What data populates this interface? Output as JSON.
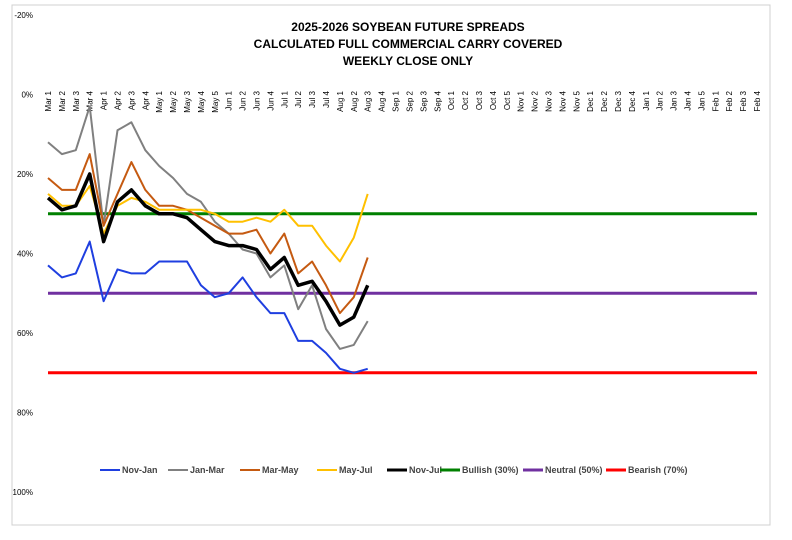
{
  "chart_data": {
    "type": "line",
    "title": [
      "2025-2026 SOYBEAN FUTURE SPREADS",
      "CALCULATED FULL COMMERCIAL CARRY COVERED",
      "WEEKLY CLOSE ONLY"
    ],
    "categories": [
      "Mar 1",
      "Mar 2",
      "Mar 3",
      "Mar 4",
      "Apr 1",
      "Apr 2",
      "Apr 3",
      "Apr 4",
      "May 1",
      "May 2",
      "May 3",
      "May 4",
      "May 5",
      "Jun 1",
      "Jun 2",
      "Jun 3",
      "Jun 4",
      "Jul 1",
      "Jul 2",
      "Jul 3",
      "Jul 4",
      "Aug 1",
      "Aug 2",
      "Aug 3",
      "Aug 4",
      "Sep 1",
      "Sep 2",
      "Sep 3",
      "Sep 4",
      "Oct 1",
      "Oct 2",
      "Oct 3",
      "Oct 4",
      "Oct 5",
      "Nov 1",
      "Nov 2",
      "Nov 3",
      "Nov 4",
      "Nov 5",
      "Dec 1",
      "Dec 2",
      "Dec 3",
      "Dec 4",
      "Jan 1",
      "Jan 2",
      "Jan 3",
      "Jan 4",
      "Jan 5",
      "Feb 1",
      "Feb 2",
      "Feb 3",
      "Feb 4"
    ],
    "ylim": [
      -20,
      100
    ],
    "y_inverted": true,
    "yticks": [
      {
        "value": -20,
        "label": "-20%"
      },
      {
        "value": 0,
        "label": "0%"
      },
      {
        "value": 20,
        "label": "20%"
      },
      {
        "value": 40,
        "label": "40%"
      },
      {
        "value": 60,
        "label": "60%"
      },
      {
        "value": 80,
        "label": "80%"
      },
      {
        "value": 100,
        "label": "100%"
      }
    ],
    "grid": false,
    "legend": "bottom",
    "series": [
      {
        "name": "Nov-Jan",
        "color": "#1f3fe0",
        "width": 2,
        "values": [
          43,
          46,
          45,
          37,
          52,
          44,
          45,
          45,
          42,
          42,
          42,
          48,
          51,
          50,
          46,
          51,
          55,
          55,
          62,
          62,
          65,
          69,
          70,
          69,
          null,
          null,
          null,
          null,
          null,
          null,
          null,
          null,
          null,
          null,
          null,
          null,
          null,
          null,
          null,
          null,
          null,
          null,
          null,
          null,
          null,
          null,
          null,
          null,
          null,
          null,
          null,
          null
        ]
      },
      {
        "name": "Jan-Mar",
        "color": "#808080",
        "width": 2,
        "values": [
          12,
          15,
          14,
          3,
          33,
          9,
          7,
          14,
          18,
          21,
          25,
          27,
          32,
          35,
          39,
          40,
          46,
          43,
          54,
          48,
          59,
          64,
          63,
          57,
          null,
          null,
          null,
          null,
          null,
          null,
          null,
          null,
          null,
          null,
          null,
          null,
          null,
          null,
          null,
          null,
          null,
          null,
          null,
          null,
          null,
          null,
          null,
          null,
          null,
          null,
          null,
          null
        ]
      },
      {
        "name": "Mar-May",
        "color": "#c55a11",
        "width": 2,
        "values": [
          21,
          24,
          24,
          15,
          33,
          25,
          17,
          24,
          28,
          28,
          29,
          31,
          33,
          35,
          35,
          34,
          40,
          35,
          45,
          42,
          48,
          55,
          51,
          41,
          null,
          null,
          null,
          null,
          null,
          null,
          null,
          null,
          null,
          null,
          null,
          null,
          null,
          null,
          null,
          null,
          null,
          null,
          null,
          null,
          null,
          null,
          null,
          null,
          null,
          null,
          null,
          null
        ]
      },
      {
        "name": "May-Jul",
        "color": "#ffc000",
        "width": 2,
        "values": [
          25,
          28,
          28,
          23,
          35,
          28,
          26,
          27,
          29,
          29,
          29,
          29,
          30,
          32,
          32,
          31,
          32,
          29,
          33,
          33,
          38,
          42,
          36,
          25,
          null,
          null,
          null,
          null,
          null,
          null,
          null,
          null,
          null,
          null,
          null,
          null,
          null,
          null,
          null,
          null,
          null,
          null,
          null,
          null,
          null,
          null,
          null,
          null,
          null,
          null,
          null,
          null
        ]
      },
      {
        "name": "Nov-Jul",
        "color": "#000000",
        "width": 3.5,
        "values": [
          26,
          29,
          28,
          20,
          37,
          27,
          24,
          28,
          30,
          30,
          31,
          34,
          37,
          38,
          38,
          39,
          44,
          41,
          48,
          47,
          52,
          58,
          56,
          48,
          null,
          null,
          null,
          null,
          null,
          null,
          null,
          null,
          null,
          null,
          null,
          null,
          null,
          null,
          null,
          null,
          null,
          null,
          null,
          null,
          null,
          null,
          null,
          null,
          null,
          null,
          null,
          null
        ]
      },
      {
        "name": "Bullish (30%)",
        "color": "#008000",
        "width": 3,
        "values": [
          30,
          30,
          30,
          30,
          30,
          30,
          30,
          30,
          30,
          30,
          30,
          30,
          30,
          30,
          30,
          30,
          30,
          30,
          30,
          30,
          30,
          30,
          30,
          30,
          30,
          30,
          30,
          30,
          30,
          30,
          30,
          30,
          30,
          30,
          30,
          30,
          30,
          30,
          30,
          30,
          30,
          30,
          30,
          30,
          30,
          30,
          30,
          30,
          30,
          30,
          30,
          30
        ]
      },
      {
        "name": "Neutral (50%)",
        "color": "#7030a0",
        "width": 3,
        "values": [
          50,
          50,
          50,
          50,
          50,
          50,
          50,
          50,
          50,
          50,
          50,
          50,
          50,
          50,
          50,
          50,
          50,
          50,
          50,
          50,
          50,
          50,
          50,
          50,
          50,
          50,
          50,
          50,
          50,
          50,
          50,
          50,
          50,
          50,
          50,
          50,
          50,
          50,
          50,
          50,
          50,
          50,
          50,
          50,
          50,
          50,
          50,
          50,
          50,
          50,
          50,
          50
        ]
      },
      {
        "name": "Bearish (70%)",
        "color": "#ff0000",
        "width": 3,
        "values": [
          70,
          70,
          70,
          70,
          70,
          70,
          70,
          70,
          70,
          70,
          70,
          70,
          70,
          70,
          70,
          70,
          70,
          70,
          70,
          70,
          70,
          70,
          70,
          70,
          70,
          70,
          70,
          70,
          70,
          70,
          70,
          70,
          70,
          70,
          70,
          70,
          70,
          70,
          70,
          70,
          70,
          70,
          70,
          70,
          70,
          70,
          70,
          70,
          70,
          70,
          70,
          70
        ]
      }
    ]
  }
}
